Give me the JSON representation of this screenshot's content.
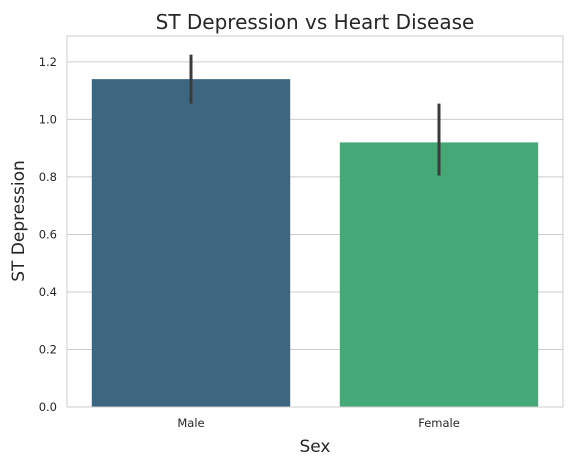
{
  "chart_data": {
    "type": "bar",
    "title": "ST Depression vs Heart Disease",
    "xlabel": "Sex",
    "ylabel": "ST Depression",
    "categories": [
      "Male",
      "Female"
    ],
    "values": [
      1.14,
      0.92
    ],
    "error_bars": [
      [
        1.055,
        1.225
      ],
      [
        0.805,
        1.055
      ]
    ],
    "colors": [
      "#3d6681",
      "#45a877"
    ],
    "ylim": [
      0,
      1.29
    ],
    "yticks": [
      "0.0",
      "0.2",
      "0.4",
      "0.6",
      "0.8",
      "1.0",
      "1.2"
    ],
    "grid": "horizontal"
  }
}
